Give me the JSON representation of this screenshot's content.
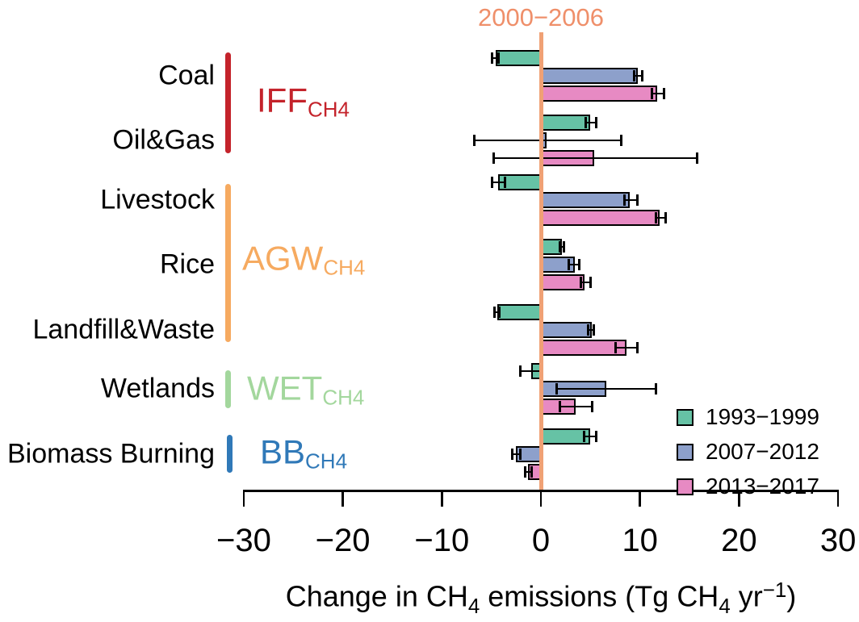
{
  "figure": {
    "reference_label": "2000−2006"
  },
  "chart_data": {
    "type": "bar",
    "orientation": "horizontal",
    "title": "",
    "xlabel": "Change in CH4 emissions (Tg CH4 yr−1)",
    "xlabel_rich": [
      {
        "t": "Change in CH"
      },
      {
        "t": "4",
        "style": "sub"
      },
      {
        "t": " emissions (Tg CH"
      },
      {
        "t": "4",
        "style": "sub"
      },
      {
        "t": " yr"
      },
      {
        "t": "−1",
        "style": "sup"
      },
      {
        "t": ")"
      }
    ],
    "xlim": [
      -30,
      30
    ],
    "xticks": [
      -30,
      -20,
      -10,
      0,
      10,
      20,
      30
    ],
    "grid": false,
    "legend_position": "lower-right",
    "reference_line": {
      "x": 0,
      "label": "2000−2006",
      "color_line": "#f0a175",
      "color_label": "#ef8f6a"
    },
    "series": [
      {
        "name": "1993−1999",
        "color": "#66c2a5"
      },
      {
        "name": "2007−2012",
        "color": "#8da0cb"
      },
      {
        "name": "2013−2017",
        "color": "#e78ac3"
      }
    ],
    "groups": [
      {
        "id": "iff-ch4",
        "label": "IFF",
        "subscript": "CH4",
        "color": "#c4232b",
        "categories": [
          "Coal",
          "Oil&Gas"
        ]
      },
      {
        "id": "agw-ch4",
        "label": "AGW",
        "subscript": "CH4",
        "color": "#f6aa60",
        "categories": [
          "Livestock",
          "Rice",
          "Landfill&Waste"
        ]
      },
      {
        "id": "wet-ch4",
        "label": "WET",
        "subscript": "CH4",
        "color": "#a3d79d",
        "categories": [
          "Wetlands"
        ]
      },
      {
        "id": "bb-ch4",
        "label": "BB",
        "subscript": "CH4",
        "color": "#3079b8",
        "categories": [
          "Biomass Burning"
        ]
      }
    ],
    "categories": [
      {
        "name": "Coal",
        "group": "iff-ch4",
        "bars": [
          {
            "series": "1993−1999",
            "value": -4.6,
            "err_lo": -4.9,
            "err_hi": -4.3
          },
          {
            "series": "2007−2012",
            "value": 9.8,
            "err_lo": 9.4,
            "err_hi": 10.2
          },
          {
            "series": "2013−2017",
            "value": 11.7,
            "err_lo": 11.2,
            "err_hi": 12.4
          }
        ]
      },
      {
        "name": "Oil&Gas",
        "group": "iff-ch4",
        "bars": [
          {
            "series": "1993−1999",
            "value": 5.0,
            "err_lo": 4.5,
            "err_hi": 5.6
          },
          {
            "series": "2007−2012",
            "value": 0.6,
            "err_lo": -6.7,
            "err_hi": 8.1
          },
          {
            "series": "2013−2017",
            "value": 5.4,
            "err_lo": -4.8,
            "err_hi": 15.8
          }
        ]
      },
      {
        "name": "Livestock",
        "group": "agw-ch4",
        "bars": [
          {
            "series": "1993−1999",
            "value": -4.3,
            "err_lo": -4.9,
            "err_hi": -3.6
          },
          {
            "series": "2007−2012",
            "value": 9.0,
            "err_lo": 8.4,
            "err_hi": 9.7
          },
          {
            "series": "2013−2017",
            "value": 12.0,
            "err_lo": 11.6,
            "err_hi": 12.6
          }
        ]
      },
      {
        "name": "Rice",
        "group": "agw-ch4",
        "bars": [
          {
            "series": "1993−1999",
            "value": 2.1,
            "err_lo": 1.9,
            "err_hi": 2.3
          },
          {
            "series": "2007−2012",
            "value": 3.4,
            "err_lo": 2.8,
            "err_hi": 3.9
          },
          {
            "series": "2013−2017",
            "value": 4.4,
            "err_lo": 4.0,
            "err_hi": 5.0
          }
        ]
      },
      {
        "name": "Landfill&Waste",
        "group": "agw-ch4",
        "bars": [
          {
            "series": "1993−1999",
            "value": -4.4,
            "err_lo": -4.7,
            "err_hi": -4.2
          },
          {
            "series": "2007−2012",
            "value": 5.1,
            "err_lo": 4.8,
            "err_hi": 5.3
          },
          {
            "series": "2013−2017",
            "value": 8.6,
            "err_lo": 7.5,
            "err_hi": 9.7
          }
        ]
      },
      {
        "name": "Wetlands",
        "group": "wet-ch4",
        "bars": [
          {
            "series": "1993−1999",
            "value": -1.0,
            "err_lo": -2.1,
            "err_hi": 0.1
          },
          {
            "series": "2007−2012",
            "value": 6.6,
            "err_lo": 1.6,
            "err_hi": 11.6
          },
          {
            "series": "2013−2017",
            "value": 3.5,
            "err_lo": 1.9,
            "err_hi": 5.2
          }
        ]
      },
      {
        "name": "Biomass Burning",
        "group": "bb-ch4",
        "bars": [
          {
            "series": "1993−1999",
            "value": 5.0,
            "err_lo": 4.4,
            "err_hi": 5.6
          },
          {
            "series": "2007−2012",
            "value": -2.5,
            "err_lo": -2.9,
            "err_hi": -2.1
          },
          {
            "series": "2013−2017",
            "value": -1.3,
            "err_lo": -1.6,
            "err_hi": -0.9
          }
        ]
      }
    ]
  }
}
